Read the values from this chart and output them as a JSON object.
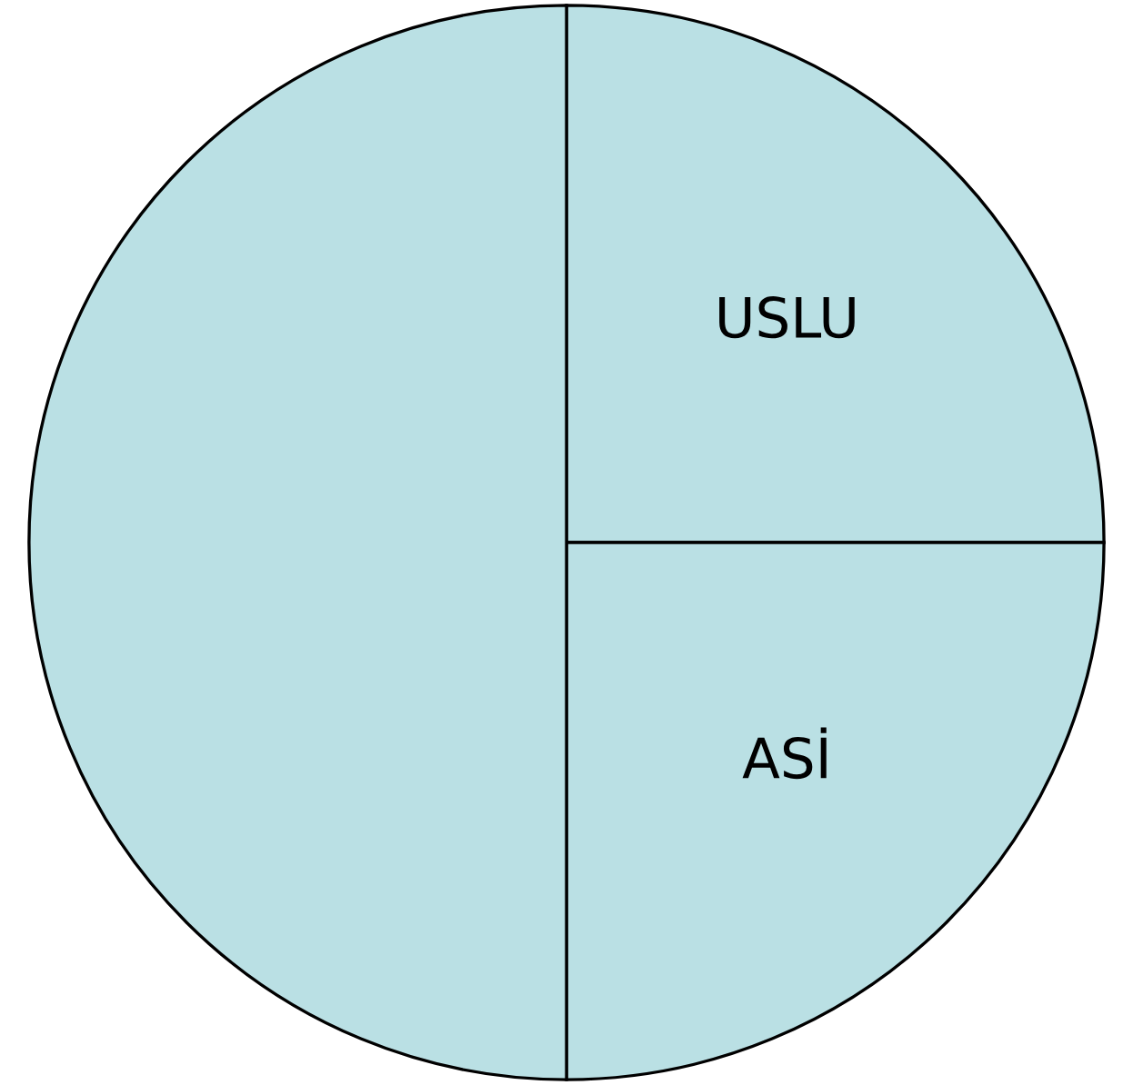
{
  "chart_data": {
    "type": "pie",
    "categories": [
      "USLU",
      "ASİ",
      null
    ],
    "values": [
      25,
      25,
      50
    ],
    "colors": [
      "#bae0e4",
      "#bae0e4",
      "#bae0e4"
    ]
  }
}
